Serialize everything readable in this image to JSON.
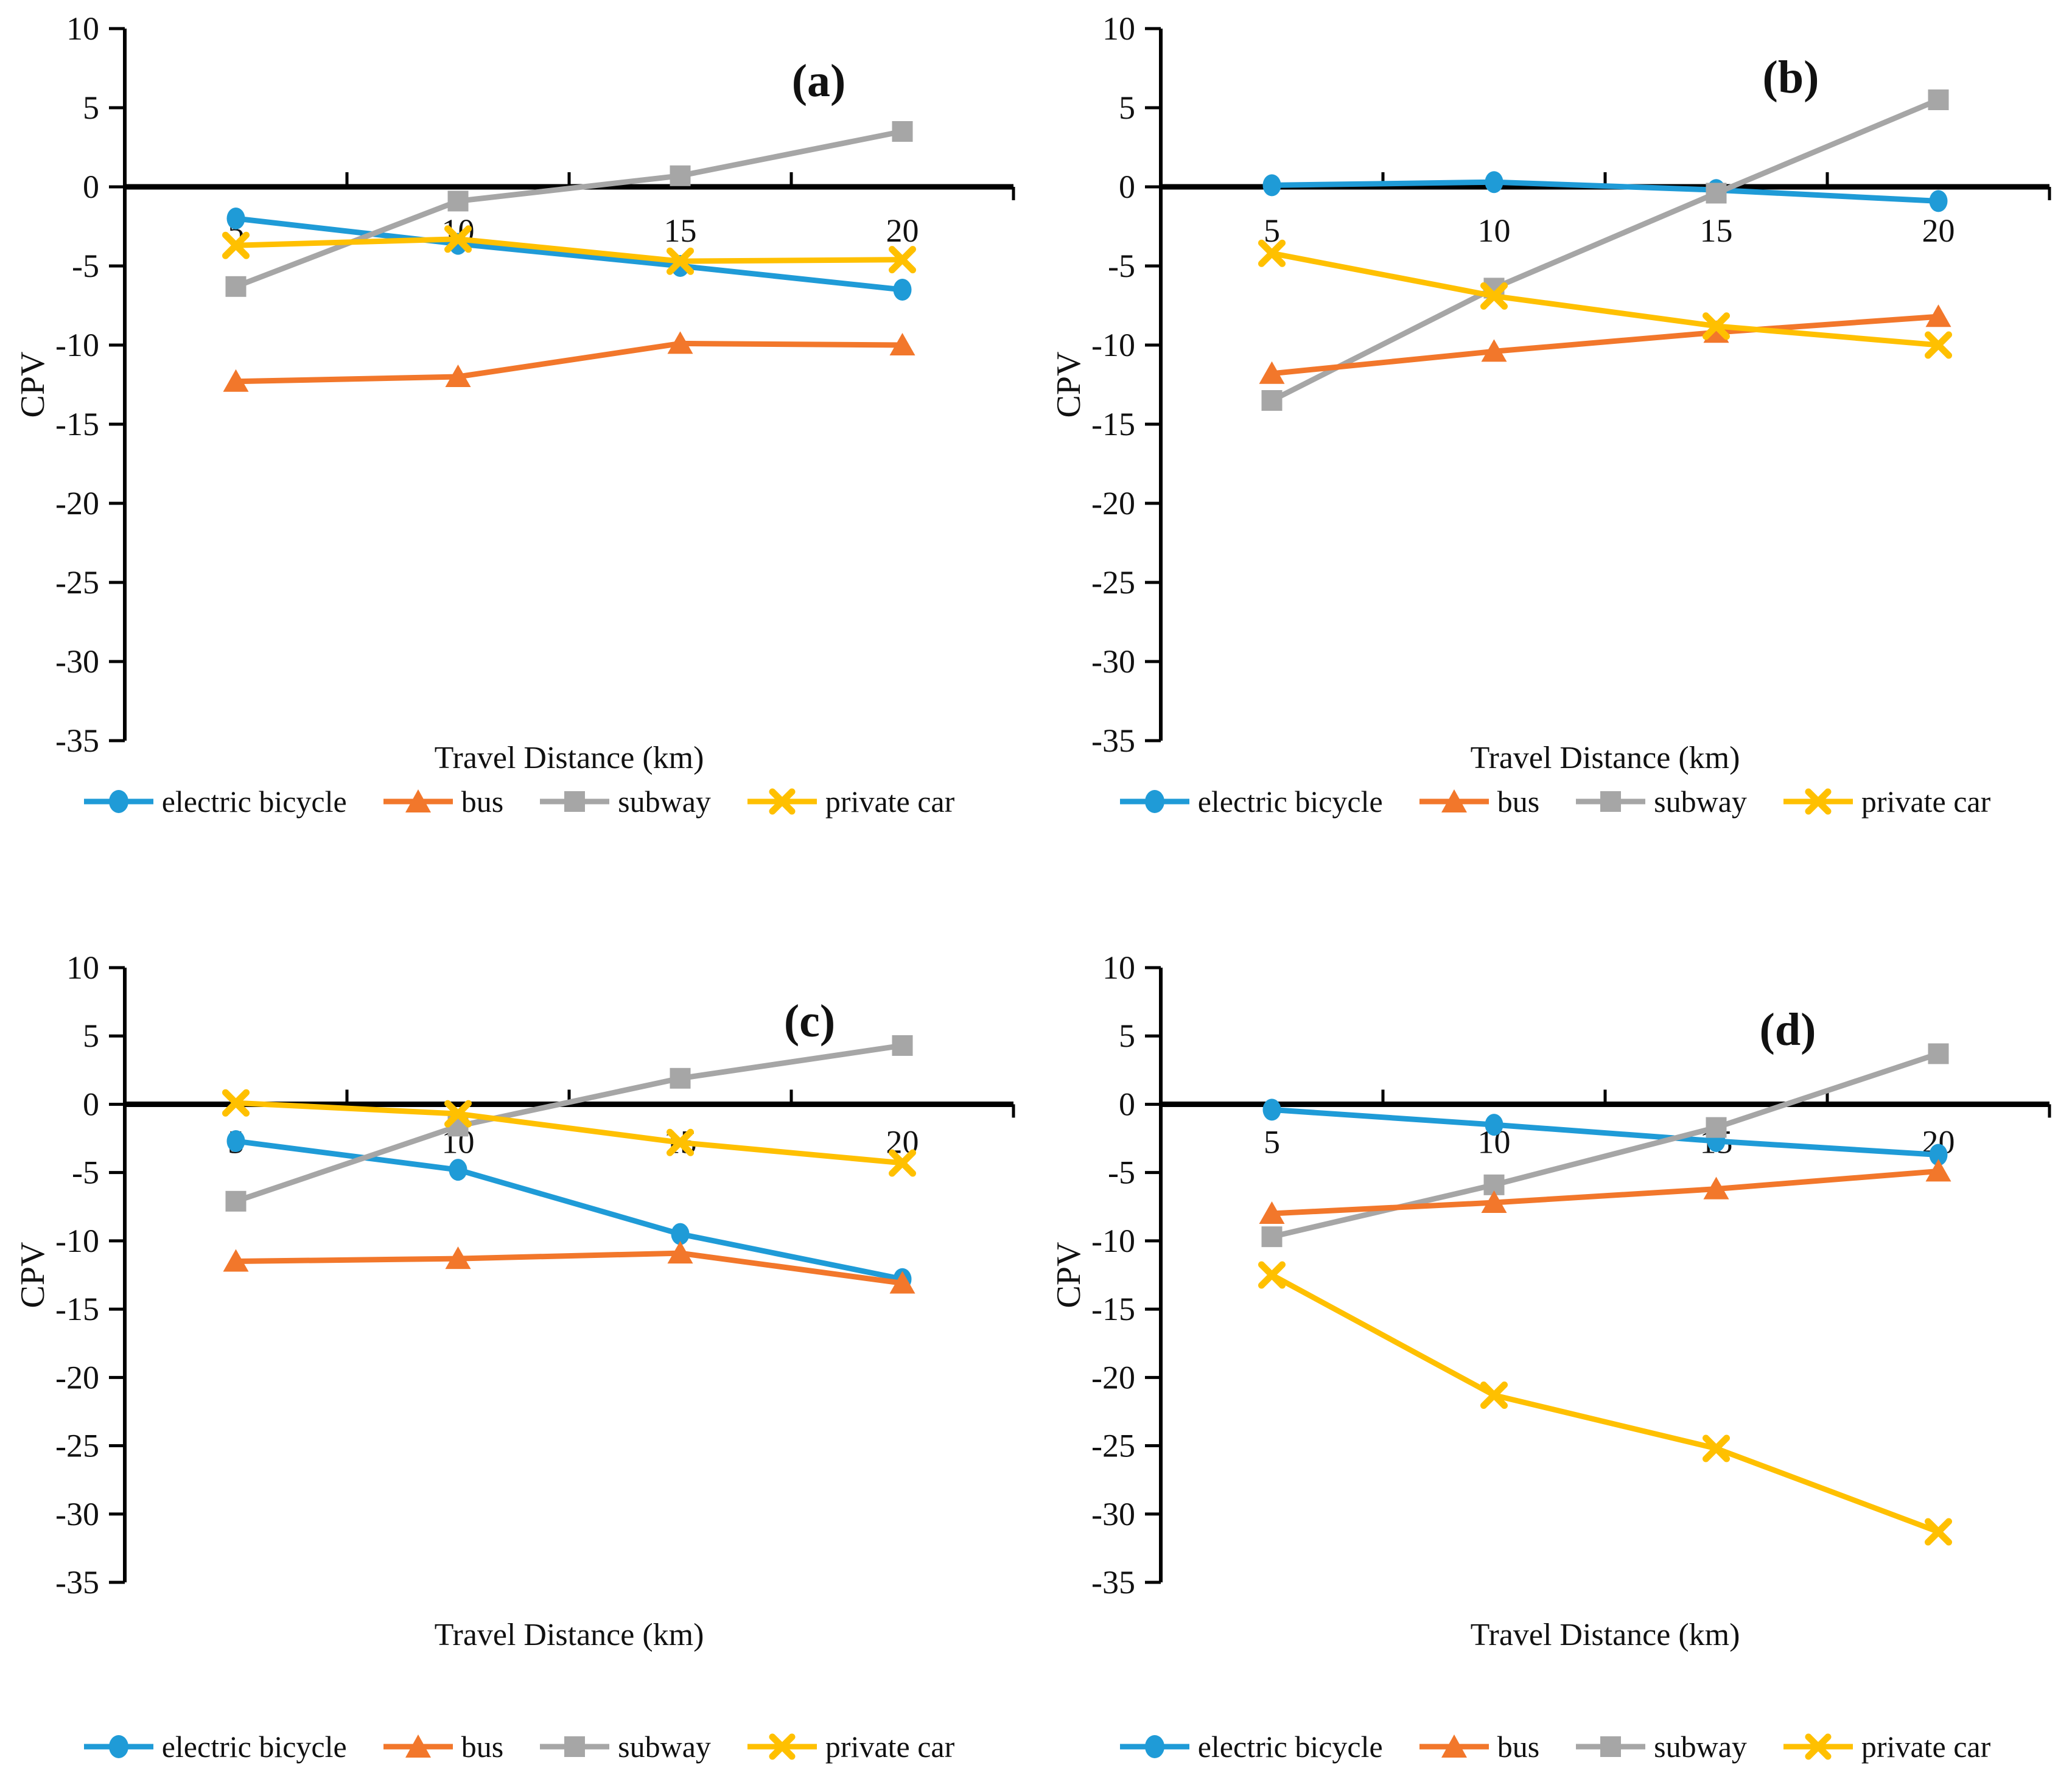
{
  "figure": {
    "xlabel": "Travel Distance (km)",
    "ylabel": "CPV"
  },
  "chart_data": [
    {
      "type": "line",
      "panel": "(a)",
      "xlabel": "Travel Distance (km)",
      "ylabel": "CPV",
      "x": [
        5,
        10,
        15,
        20
      ],
      "ylim": [
        -35,
        10
      ],
      "yticks": [
        10,
        5,
        0,
        -5,
        -10,
        -15,
        -20,
        -25,
        -30,
        -35
      ],
      "grid": false,
      "legend_position": "bottom",
      "series": [
        {
          "name": "electric bicycle",
          "marker": "circle",
          "color": "#1F9BD7",
          "values": [
            -2.0,
            -3.6,
            -5.0,
            -6.5
          ]
        },
        {
          "name": "bus",
          "marker": "triangle",
          "color": "#F2772B",
          "values": [
            -12.3,
            -12.0,
            -9.9,
            -10.0
          ]
        },
        {
          "name": "subway",
          "marker": "square",
          "color": "#A6A6A6",
          "values": [
            -6.3,
            -0.9,
            0.7,
            3.5
          ]
        },
        {
          "name": "private car",
          "marker": "x",
          "color": "#FFC000",
          "values": [
            -3.7,
            -3.3,
            -4.7,
            -4.6
          ]
        }
      ]
    },
    {
      "type": "line",
      "panel": "(b)",
      "xlabel": "Travel Distance (km)",
      "ylabel": "CPV",
      "x": [
        5,
        10,
        15,
        20
      ],
      "ylim": [
        -35,
        10
      ],
      "yticks": [
        10,
        5,
        0,
        -5,
        -10,
        -15,
        -20,
        -25,
        -30,
        -35
      ],
      "grid": false,
      "legend_position": "bottom",
      "series": [
        {
          "name": "electric bicycle",
          "marker": "circle",
          "color": "#1F9BD7",
          "values": [
            0.1,
            0.3,
            -0.2,
            -0.9
          ]
        },
        {
          "name": "bus",
          "marker": "triangle",
          "color": "#F2772B",
          "values": [
            -11.8,
            -10.4,
            -9.2,
            -8.2
          ]
        },
        {
          "name": "subway",
          "marker": "square",
          "color": "#A6A6A6",
          "values": [
            -13.5,
            -6.4,
            -0.4,
            5.5
          ]
        },
        {
          "name": "private car",
          "marker": "x",
          "color": "#FFC000",
          "values": [
            -4.2,
            -6.9,
            -8.8,
            -10.0
          ]
        }
      ]
    },
    {
      "type": "line",
      "panel": "(c)",
      "xlabel": "Travel Distance (km)",
      "ylabel": "CPV",
      "x": [
        5,
        10,
        15,
        20
      ],
      "ylim": [
        -35,
        10
      ],
      "yticks": [
        10,
        5,
        0,
        -5,
        -10,
        -15,
        -20,
        -25,
        -30,
        -35
      ],
      "grid": false,
      "legend_position": "bottom",
      "series": [
        {
          "name": "electric bicycle",
          "marker": "circle",
          "color": "#1F9BD7",
          "values": [
            -2.7,
            -4.8,
            -9.5,
            -12.8
          ]
        },
        {
          "name": "bus",
          "marker": "triangle",
          "color": "#F2772B",
          "values": [
            -11.5,
            -11.3,
            -10.9,
            -13.1
          ]
        },
        {
          "name": "subway",
          "marker": "square",
          "color": "#A6A6A6",
          "values": [
            -7.1,
            -1.6,
            1.9,
            4.3
          ]
        },
        {
          "name": "private car",
          "marker": "x",
          "color": "#FFC000",
          "values": [
            0.1,
            -0.7,
            -2.8,
            -4.3
          ]
        }
      ]
    },
    {
      "type": "line",
      "panel": "(d)",
      "xlabel": "Travel Distance (km)",
      "ylabel": "CPV",
      "x": [
        5,
        10,
        15,
        20
      ],
      "ylim": [
        -35,
        10
      ],
      "yticks": [
        10,
        5,
        0,
        -5,
        -10,
        -15,
        -20,
        -25,
        -30,
        -35
      ],
      "grid": false,
      "legend_position": "bottom",
      "series": [
        {
          "name": "electric bicycle",
          "marker": "circle",
          "color": "#1F9BD7",
          "values": [
            -0.4,
            -1.5,
            -2.7,
            -3.7
          ]
        },
        {
          "name": "bus",
          "marker": "triangle",
          "color": "#F2772B",
          "values": [
            -8.0,
            -7.2,
            -6.2,
            -4.9
          ]
        },
        {
          "name": "subway",
          "marker": "square",
          "color": "#A6A6A6",
          "values": [
            -9.7,
            -5.9,
            -1.7,
            3.7
          ]
        },
        {
          "name": "private car",
          "marker": "x",
          "color": "#FFC000",
          "values": [
            -12.5,
            -21.3,
            -25.2,
            -31.3
          ]
        }
      ]
    }
  ]
}
